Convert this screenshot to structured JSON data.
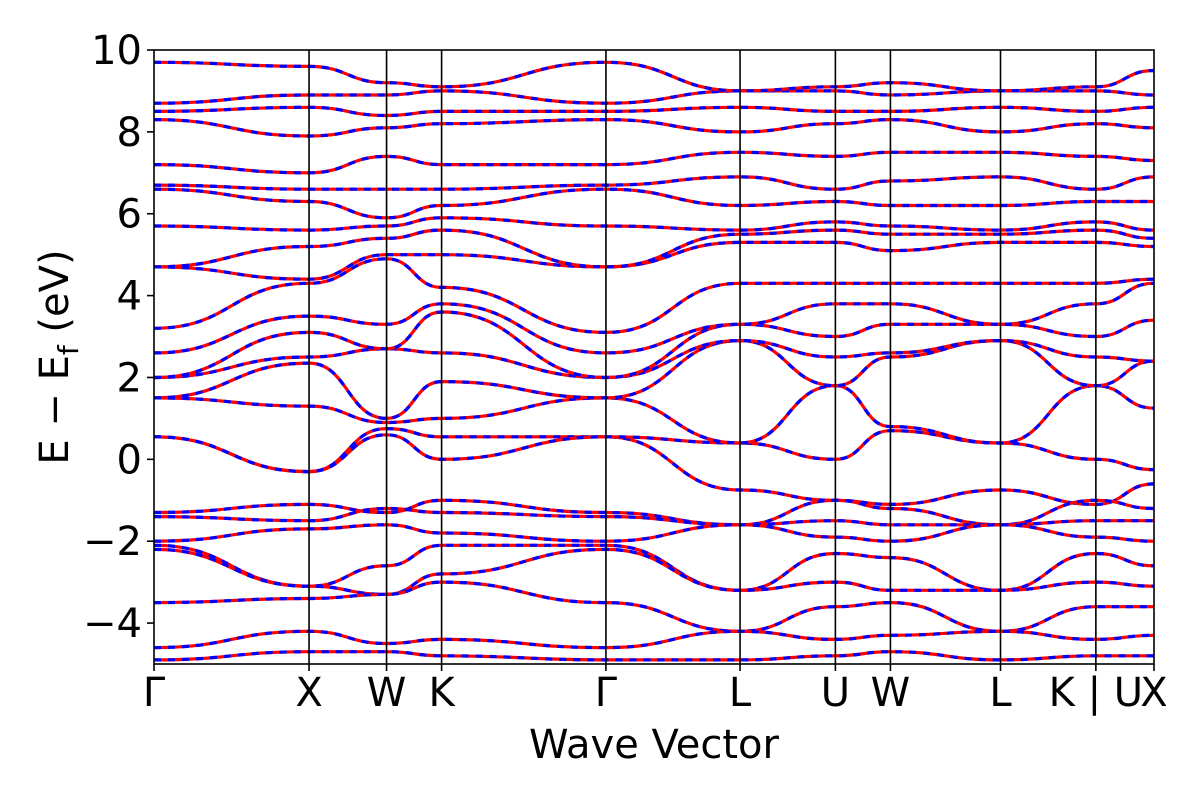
{
  "chart_data": {
    "type": "line",
    "title": "",
    "xlabel": "Wave Vector",
    "ylabel_main": "E − E",
    "ylabel_sub": "f",
    "ylabel_unit": " (eV)",
    "ylim": [
      -5,
      10
    ],
    "yticks": [
      -4,
      -2,
      0,
      2,
      4,
      6,
      8,
      10
    ],
    "ytick_labels": [
      "−4",
      "−2",
      "0",
      "2",
      "4",
      "6",
      "8",
      "10"
    ],
    "xlim": [
      0,
      6.45
    ],
    "high_symmetry_points": [
      {
        "label": "Γ",
        "x": 0.0
      },
      {
        "label": "X",
        "x": 1.0
      },
      {
        "label": "W",
        "x": 1.5
      },
      {
        "label": "K",
        "x": 1.855
      },
      {
        "label": "Γ",
        "x": 2.915
      },
      {
        "label": "L",
        "x": 3.78
      },
      {
        "label": "U",
        "x": 4.395
      },
      {
        "label": "W",
        "x": 4.75
      },
      {
        "label": "L",
        "x": 5.46
      },
      {
        "label": "K | U",
        "x": 6.075
      },
      {
        "label": "X",
        "x": 6.45
      }
    ],
    "series_colors": {
      "spin_up": "#ff0000",
      "spin_down": "#0000ff"
    },
    "series": [
      {
        "x": [
          0,
          1.0,
          1.5,
          1.855,
          2.915,
          3.78,
          4.395,
          4.75,
          5.46,
          6.075,
          6.45
        ],
        "values": [
          0.55,
          -0.3,
          0.75,
          0.55,
          0.55,
          -0.75,
          -1.0,
          -1.1,
          -0.75,
          -1.1,
          -0.6
        ]
      },
      {
        "x": [
          0,
          1.0,
          1.5,
          1.855,
          2.915,
          3.78,
          4.395,
          4.75,
          5.46,
          6.075,
          6.45
        ],
        "values": [
          0.55,
          -0.3,
          0.6,
          0.0,
          0.55,
          0.4,
          0.0,
          0.7,
          0.4,
          0.0,
          -0.25
        ]
      },
      {
        "x": [
          0,
          1.0,
          1.5,
          1.855,
          2.915,
          3.78,
          4.395,
          4.75,
          5.46,
          6.075,
          6.45
        ],
        "values": [
          1.5,
          1.3,
          0.9,
          1.0,
          1.5,
          0.4,
          1.8,
          0.8,
          0.4,
          1.8,
          1.25
        ]
      },
      {
        "x": [
          0,
          1.0,
          1.5,
          1.855,
          2.915,
          3.78,
          4.395,
          4.75,
          5.46,
          6.075,
          6.45
        ],
        "values": [
          1.5,
          2.35,
          1.0,
          1.9,
          1.5,
          2.9,
          1.8,
          2.5,
          2.9,
          1.8,
          2.4
        ]
      },
      {
        "x": [
          0,
          1.0,
          1.5,
          1.855,
          2.915,
          3.78,
          4.395,
          4.75,
          5.46,
          6.075,
          6.45
        ],
        "values": [
          2.0,
          2.5,
          2.7,
          2.6,
          2.0,
          2.9,
          2.5,
          2.6,
          2.9,
          2.5,
          2.4
        ]
      },
      {
        "x": [
          0,
          1.0,
          1.5,
          1.855,
          2.915,
          3.78,
          4.395,
          4.75,
          5.46,
          6.075,
          6.45
        ],
        "values": [
          2.0,
          3.1,
          2.7,
          3.6,
          2.0,
          3.3,
          3.0,
          3.3,
          3.3,
          3.0,
          3.4
        ]
      },
      {
        "x": [
          0,
          1.0,
          1.5,
          1.855,
          2.915,
          3.78,
          4.395,
          4.75,
          5.46,
          6.075,
          6.45
        ],
        "values": [
          2.6,
          3.5,
          3.3,
          3.8,
          2.6,
          3.3,
          3.8,
          3.8,
          3.3,
          3.8,
          4.3
        ]
      },
      {
        "x": [
          0,
          1.0,
          1.5,
          1.855,
          2.915,
          3.78,
          4.395,
          4.75,
          5.46,
          6.075,
          6.45
        ],
        "values": [
          3.2,
          4.3,
          4.9,
          4.2,
          3.1,
          4.3,
          4.3,
          4.3,
          4.3,
          4.3,
          4.4
        ]
      },
      {
        "x": [
          0,
          1.0,
          1.5,
          1.855,
          2.915,
          3.78,
          4.395,
          4.75,
          5.46,
          6.075,
          6.45
        ],
        "values": [
          4.7,
          4.4,
          5.0,
          5.0,
          4.7,
          5.3,
          5.3,
          5.1,
          5.3,
          5.3,
          5.2
        ]
      },
      {
        "x": [
          0,
          1.0,
          1.5,
          1.855,
          2.915,
          3.78,
          4.395,
          4.75,
          5.46,
          6.075,
          6.45
        ],
        "values": [
          4.7,
          5.2,
          5.4,
          5.6,
          4.7,
          5.5,
          5.6,
          5.5,
          5.5,
          5.6,
          5.4
        ]
      },
      {
        "x": [
          0,
          1.0,
          1.5,
          1.855,
          2.915,
          3.78,
          4.395,
          4.75,
          5.46,
          6.075,
          6.45
        ],
        "values": [
          5.7,
          5.6,
          5.7,
          5.9,
          5.7,
          5.6,
          5.8,
          5.7,
          5.6,
          5.8,
          5.6
        ]
      },
      {
        "x": [
          0,
          1.0,
          1.5,
          1.855,
          2.915,
          3.78,
          4.395,
          4.75,
          5.46,
          6.075,
          6.45
        ],
        "values": [
          6.6,
          6.3,
          5.9,
          6.2,
          6.6,
          6.2,
          6.3,
          6.2,
          6.2,
          6.3,
          6.3
        ]
      },
      {
        "x": [
          0,
          1.0,
          1.5,
          1.855,
          2.915,
          3.78,
          4.395,
          4.75,
          5.46,
          6.075,
          6.45
        ],
        "values": [
          6.7,
          6.6,
          6.6,
          6.6,
          6.7,
          6.9,
          6.6,
          6.8,
          6.9,
          6.6,
          6.9
        ]
      },
      {
        "x": [
          0,
          1.0,
          1.5,
          1.855,
          2.915,
          3.78,
          4.395,
          4.75,
          5.46,
          6.075,
          6.45
        ],
        "values": [
          7.2,
          7.0,
          7.4,
          7.2,
          7.2,
          7.5,
          7.4,
          7.5,
          7.5,
          7.4,
          7.3
        ]
      },
      {
        "x": [
          0,
          1.0,
          1.5,
          1.855,
          2.915,
          3.78,
          4.395,
          4.75,
          5.46,
          6.075,
          6.45
        ],
        "values": [
          8.3,
          7.9,
          8.1,
          8.2,
          8.3,
          8.0,
          8.2,
          8.3,
          8.0,
          8.2,
          8.1
        ]
      },
      {
        "x": [
          0,
          1.0,
          1.5,
          1.855,
          2.915,
          3.78,
          4.395,
          4.75,
          5.46,
          6.075,
          6.45
        ],
        "values": [
          8.5,
          8.6,
          8.4,
          8.5,
          8.5,
          8.6,
          8.5,
          8.5,
          8.6,
          8.5,
          8.6
        ]
      },
      {
        "x": [
          0,
          1.0,
          1.5,
          1.855,
          2.915,
          3.78,
          4.395,
          4.75,
          5.46,
          6.075,
          6.45
        ],
        "values": [
          8.7,
          8.9,
          8.9,
          9.0,
          8.7,
          9.0,
          9.0,
          8.9,
          9.0,
          9.0,
          8.9
        ]
      },
      {
        "x": [
          0,
          1.0,
          1.5,
          1.855,
          2.915,
          3.78,
          4.395,
          4.75,
          5.46,
          6.075,
          6.45
        ],
        "values": [
          9.7,
          9.6,
          9.2,
          9.1,
          9.7,
          9.0,
          9.1,
          9.2,
          9.0,
          9.1,
          9.5
        ]
      },
      {
        "x": [
          0,
          1.0,
          1.5,
          1.855,
          2.915,
          3.78,
          4.395,
          4.75,
          5.46,
          6.075,
          6.45
        ],
        "values": [
          -1.3,
          -1.1,
          -1.3,
          -1.0,
          -1.3,
          -1.6,
          -1.0,
          -1.2,
          -1.6,
          -1.0,
          -1.2
        ]
      },
      {
        "x": [
          0,
          1.0,
          1.5,
          1.855,
          2.915,
          3.78,
          4.395,
          4.75,
          5.46,
          6.075,
          6.45
        ],
        "values": [
          -1.4,
          -1.5,
          -1.2,
          -1.3,
          -1.4,
          -1.6,
          -1.5,
          -1.6,
          -1.6,
          -1.5,
          -1.5
        ]
      },
      {
        "x": [
          0,
          1.0,
          1.5,
          1.855,
          2.915,
          3.78,
          4.395,
          4.75,
          5.46,
          6.075,
          6.45
        ],
        "values": [
          -2.0,
          -1.7,
          -1.6,
          -1.8,
          -2.0,
          -1.6,
          -1.9,
          -2.0,
          -1.6,
          -1.9,
          -2.0
        ]
      },
      {
        "x": [
          0,
          1.0,
          1.5,
          1.855,
          2.915,
          3.78,
          4.395,
          4.75,
          5.46,
          6.075,
          6.45
        ],
        "values": [
          -2.1,
          -3.1,
          -2.6,
          -2.1,
          -2.1,
          -3.2,
          -2.3,
          -2.4,
          -3.2,
          -2.3,
          -2.6
        ]
      },
      {
        "x": [
          0,
          1.0,
          1.5,
          1.855,
          2.915,
          3.78,
          4.395,
          4.75,
          5.46,
          6.075,
          6.45
        ],
        "values": [
          -2.2,
          -3.1,
          -3.3,
          -2.8,
          -2.2,
          -3.2,
          -3.0,
          -3.2,
          -3.2,
          -3.0,
          -3.1
        ]
      },
      {
        "x": [
          0,
          1.0,
          1.5,
          1.855,
          2.915,
          3.78,
          4.395,
          4.75,
          5.46,
          6.075,
          6.45
        ],
        "values": [
          -3.5,
          -3.4,
          -3.3,
          -3.0,
          -3.5,
          -4.2,
          -3.6,
          -3.5,
          -4.2,
          -3.6,
          -3.6
        ]
      },
      {
        "x": [
          0,
          1.0,
          1.5,
          1.855,
          2.915,
          3.78,
          4.395,
          4.75,
          5.46,
          6.075,
          6.45
        ],
        "values": [
          -4.6,
          -4.2,
          -4.5,
          -4.4,
          -4.6,
          -4.2,
          -4.4,
          -4.3,
          -4.2,
          -4.4,
          -4.3
        ]
      },
      {
        "x": [
          0,
          1.0,
          1.5,
          1.855,
          2.915,
          3.78,
          4.395,
          4.75,
          5.46,
          6.075,
          6.45
        ],
        "values": [
          -4.9,
          -4.7,
          -4.7,
          -4.8,
          -4.9,
          -4.9,
          -4.8,
          -4.7,
          -4.9,
          -4.8,
          -4.8
        ]
      }
    ]
  }
}
